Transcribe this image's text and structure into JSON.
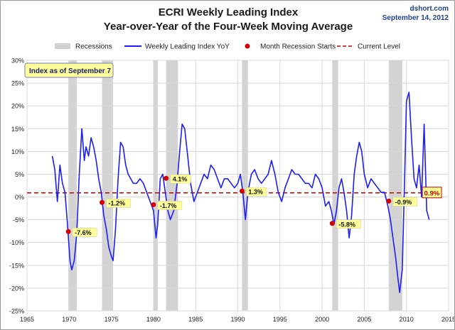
{
  "header": {
    "title": "ECRI Weekly Leading Index",
    "subtitle": "Year-over-Year of the Four-Week Moving Average",
    "source": "dshort.com",
    "date": "September 14, 2012"
  },
  "legend": {
    "placement": "top",
    "items": [
      {
        "label": "Recessions",
        "kind": "band",
        "color": "#d0d0d0"
      },
      {
        "label": "Weekly Leading Index YoY",
        "kind": "line",
        "color": "#1c1cff"
      },
      {
        "label": "Month Recession Starts",
        "kind": "dot",
        "color": "#d40000"
      },
      {
        "label": "Current Level",
        "kind": "dash",
        "color": "#c00000"
      }
    ]
  },
  "chart_data": {
    "type": "line",
    "title": "ECRI Weekly Leading Index",
    "subtitle": "Year-over-Year of the Four-Week Moving Average",
    "xlabel": "",
    "ylabel": "",
    "xlim": [
      1965,
      2015
    ],
    "ylim": [
      -25,
      30
    ],
    "x_ticks": [
      1965,
      1970,
      1975,
      1980,
      1985,
      1990,
      1995,
      2000,
      2005,
      2010,
      2015
    ],
    "y_ticks": [
      -25,
      -20,
      -15,
      -10,
      -5,
      0,
      5,
      10,
      15,
      20,
      25,
      30
    ],
    "y_tick_labels": [
      "-25%",
      "-20%",
      "-15%",
      "-10%",
      "-5%",
      "0%",
      "5%",
      "10%",
      "15%",
      "20%",
      "25%",
      "30%"
    ],
    "grid": true,
    "annotation_box": "Index as of September 7",
    "recessions": [
      [
        1969.9,
        1970.9
      ],
      [
        1973.9,
        1975.2
      ],
      [
        1980.0,
        1980.5
      ],
      [
        1981.5,
        1982.9
      ],
      [
        1990.5,
        1991.2
      ],
      [
        2001.2,
        2001.9
      ],
      [
        2007.9,
        2009.5
      ]
    ],
    "recession_starts": [
      {
        "x": 1969.9,
        "y": -7.6,
        "label": "-7.6%"
      },
      {
        "x": 1973.9,
        "y": -1.2,
        "label": "-1.2%"
      },
      {
        "x": 1980.0,
        "y": -1.7,
        "label": "-1.7%"
      },
      {
        "x": 1981.5,
        "y": 4.1,
        "label": "4.1%"
      },
      {
        "x": 1990.5,
        "y": 1.3,
        "label": "1.3%"
      },
      {
        "x": 2001.2,
        "y": -5.8,
        "label": "-5.8%"
      },
      {
        "x": 2007.9,
        "y": -0.9,
        "label": "-0.9%"
      }
    ],
    "current_level": {
      "value": 0.9,
      "label": "0.9%"
    },
    "series": [
      {
        "name": "Weekly Leading Index YoY",
        "x": [
          1968.0,
          1968.3,
          1968.6,
          1968.9,
          1969.2,
          1969.5,
          1969.8,
          1970.1,
          1970.3,
          1970.6,
          1970.9,
          1971.2,
          1971.5,
          1971.8,
          1972.0,
          1972.3,
          1972.6,
          1972.9,
          1973.2,
          1973.5,
          1973.8,
          1974.1,
          1974.4,
          1974.7,
          1975.0,
          1975.2,
          1975.5,
          1975.8,
          1976.1,
          1976.4,
          1976.7,
          1977.0,
          1977.3,
          1977.6,
          1978.0,
          1978.4,
          1978.8,
          1979.2,
          1979.6,
          1980.0,
          1980.3,
          1980.5,
          1980.8,
          1981.1,
          1981.4,
          1981.7,
          1982.0,
          1982.4,
          1982.8,
          1983.1,
          1983.4,
          1983.7,
          1984.0,
          1984.4,
          1984.8,
          1985.2,
          1985.6,
          1986.0,
          1986.4,
          1986.8,
          1987.2,
          1987.6,
          1988.0,
          1988.4,
          1988.8,
          1989.2,
          1989.6,
          1990.0,
          1990.3,
          1990.6,
          1990.9,
          1991.2,
          1991.6,
          1992.0,
          1992.4,
          1992.8,
          1993.2,
          1993.6,
          1994.0,
          1994.4,
          1994.8,
          1995.2,
          1995.6,
          1996.0,
          1996.4,
          1996.8,
          1997.2,
          1997.6,
          1998.0,
          1998.4,
          1998.8,
          1999.2,
          1999.6,
          2000.0,
          2000.4,
          2000.8,
          2001.1,
          2001.4,
          2001.7,
          2002.0,
          2002.3,
          2002.6,
          2002.9,
          2003.2,
          2003.5,
          2003.8,
          2004.1,
          2004.4,
          2004.7,
          2005.0,
          2005.4,
          2005.8,
          2006.2,
          2006.6,
          2007.0,
          2007.4,
          2007.8,
          2008.1,
          2008.4,
          2008.7,
          2009.0,
          2009.2,
          2009.5,
          2009.8,
          2010.0,
          2010.3,
          2010.6,
          2010.9,
          2011.2,
          2011.5,
          2011.8,
          2012.1,
          2012.4,
          2012.7
        ],
        "values": [
          9,
          6,
          -1,
          7,
          3,
          1,
          -6,
          -14,
          -16,
          -14,
          -8,
          5,
          15,
          8,
          11,
          9,
          13,
          11,
          8,
          4,
          1,
          -4,
          -7,
          -11,
          -13,
          -14,
          -7,
          4,
          12,
          11,
          7,
          5,
          4,
          3,
          3,
          4,
          3,
          1,
          -1,
          -3,
          -9,
          -6,
          4,
          5,
          1,
          -3,
          -5,
          -3,
          3,
          10,
          16,
          15,
          10,
          3,
          -1,
          1,
          3,
          5,
          4,
          7,
          6,
          4,
          2,
          4,
          4,
          3,
          2,
          3,
          5,
          1,
          -5,
          1,
          5,
          6,
          4,
          3,
          4,
          5,
          8,
          5,
          1,
          -1,
          2,
          4,
          6,
          5,
          5,
          4,
          3,
          3,
          2,
          5,
          4,
          2,
          -2,
          -1,
          -3,
          -6,
          -3,
          2,
          4,
          1,
          -3,
          -9,
          -4,
          5,
          9,
          12,
          10,
          5,
          2,
          4,
          3,
          2,
          1,
          1,
          -2,
          -5,
          -9,
          -13,
          -18,
          -21,
          -16,
          5,
          21,
          23,
          13,
          4,
          2,
          7,
          0,
          16,
          -3,
          -5
        ]
      }
    ]
  }
}
